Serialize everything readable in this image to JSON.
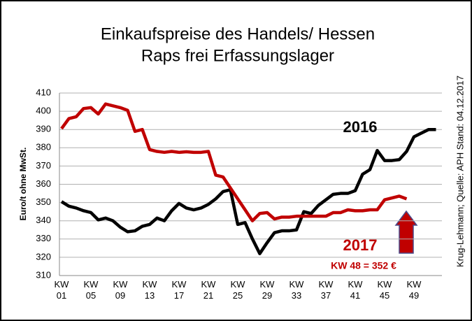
{
  "chart_data": {
    "type": "line",
    "title": "Einkaufspreise des Handels/ Hessen",
    "subtitle": "Raps frei Erfassungslager",
    "y_label": "Euro/t ohne MwSt.",
    "source": "Krug-Lehmann; Quelle: APH Stand: 04.12.2017",
    "annotation": "KW 48  =  352 €",
    "categories": [
      "KW 01",
      null,
      null,
      null,
      "KW 05",
      null,
      null,
      null,
      "KW 09",
      null,
      null,
      null,
      "KW 13",
      null,
      null,
      null,
      "KW 17",
      null,
      null,
      null,
      "KW 21",
      null,
      null,
      null,
      "KW 25",
      null,
      null,
      null,
      "KW 29",
      null,
      null,
      null,
      "KW 33",
      null,
      null,
      null,
      "KW 37",
      null,
      null,
      null,
      "KW 41",
      null,
      null,
      null,
      "KW 45",
      null,
      null,
      null,
      "KW 49",
      null,
      null,
      null
    ],
    "series": [
      {
        "name": "2016",
        "color": "#000000",
        "values": [
          350.5,
          348,
          347,
          345.5,
          344.5,
          340.5,
          341.5,
          340,
          336.5,
          334,
          334.5,
          337,
          338,
          341.5,
          340,
          345.5,
          349.5,
          347,
          346,
          347,
          349,
          352,
          356,
          357,
          338,
          339,
          330,
          322,
          328,
          333.5,
          334.5,
          334.5,
          335,
          345,
          344,
          348.5,
          351.5,
          354.5,
          355,
          355,
          356.5,
          365.5,
          368,
          378.5,
          373,
          373,
          373.5,
          378,
          386,
          388,
          390,
          390
        ]
      },
      {
        "name": "2017",
        "color": "#c00000",
        "values": [
          390.5,
          396,
          397,
          401.5,
          402,
          398.5,
          404,
          403,
          402,
          400.5,
          389,
          390,
          379,
          378,
          377.5,
          378,
          377.5,
          377.8,
          377.5,
          377.5,
          378,
          365,
          364,
          358,
          352,
          346,
          340,
          344,
          344.5,
          341,
          342,
          342,
          342.5,
          342.5,
          342.5,
          342.5,
          342.5,
          344.5,
          344.5,
          346,
          345.5,
          345.5,
          346,
          346,
          351.5,
          352.5,
          353.5,
          352,
          null,
          null,
          null,
          null
        ]
      }
    ],
    "ylim": [
      310,
      410
    ],
    "yticks": [
      310,
      320,
      330,
      340,
      350,
      360,
      370,
      380,
      390,
      400,
      410
    ],
    "grid": true
  }
}
